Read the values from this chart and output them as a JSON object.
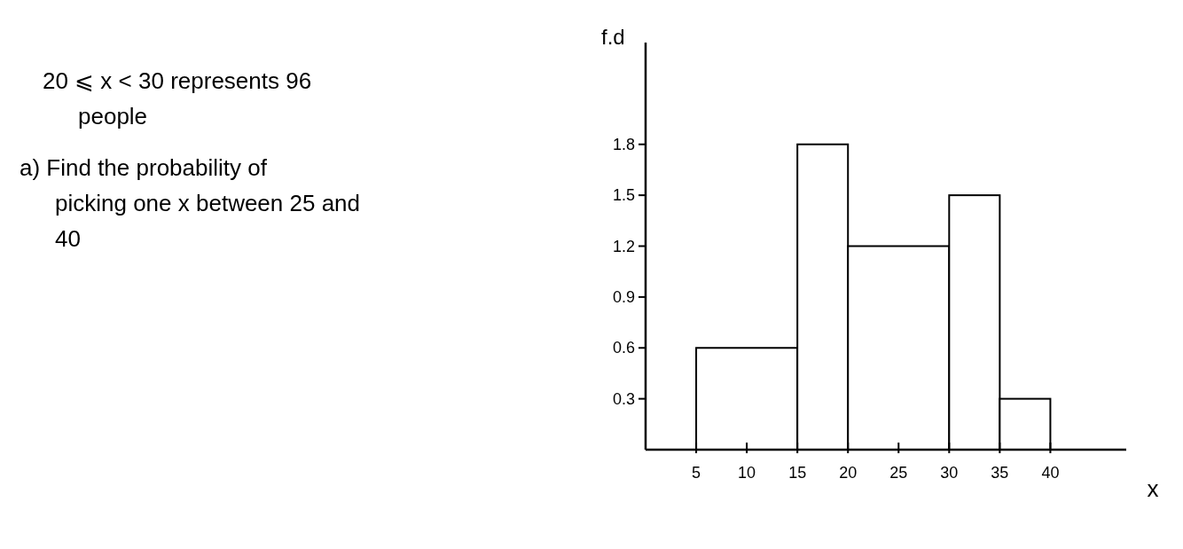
{
  "chart_data": {
    "type": "histogram",
    "xlabel": "x",
    "ylabel": "f.d",
    "bins": [
      5,
      15,
      20,
      30,
      35,
      40
    ],
    "values": [
      0.6,
      1.8,
      1.2,
      1.5,
      0.3
    ],
    "color": "#ffffff",
    "xlim": [
      0,
      47.5
    ],
    "xticks": [
      5,
      10,
      15,
      20,
      25,
      30,
      35,
      40
    ],
    "ylim": [
      0,
      2.4
    ],
    "yticks": [
      0.3,
      0.6,
      0.9,
      1.2,
      1.5,
      1.8
    ],
    "annotations": [
      "20 ⩽ x < 30 represents 96 people",
      "a) Find the probability of picking one x between 25 and 40"
    ]
  }
}
